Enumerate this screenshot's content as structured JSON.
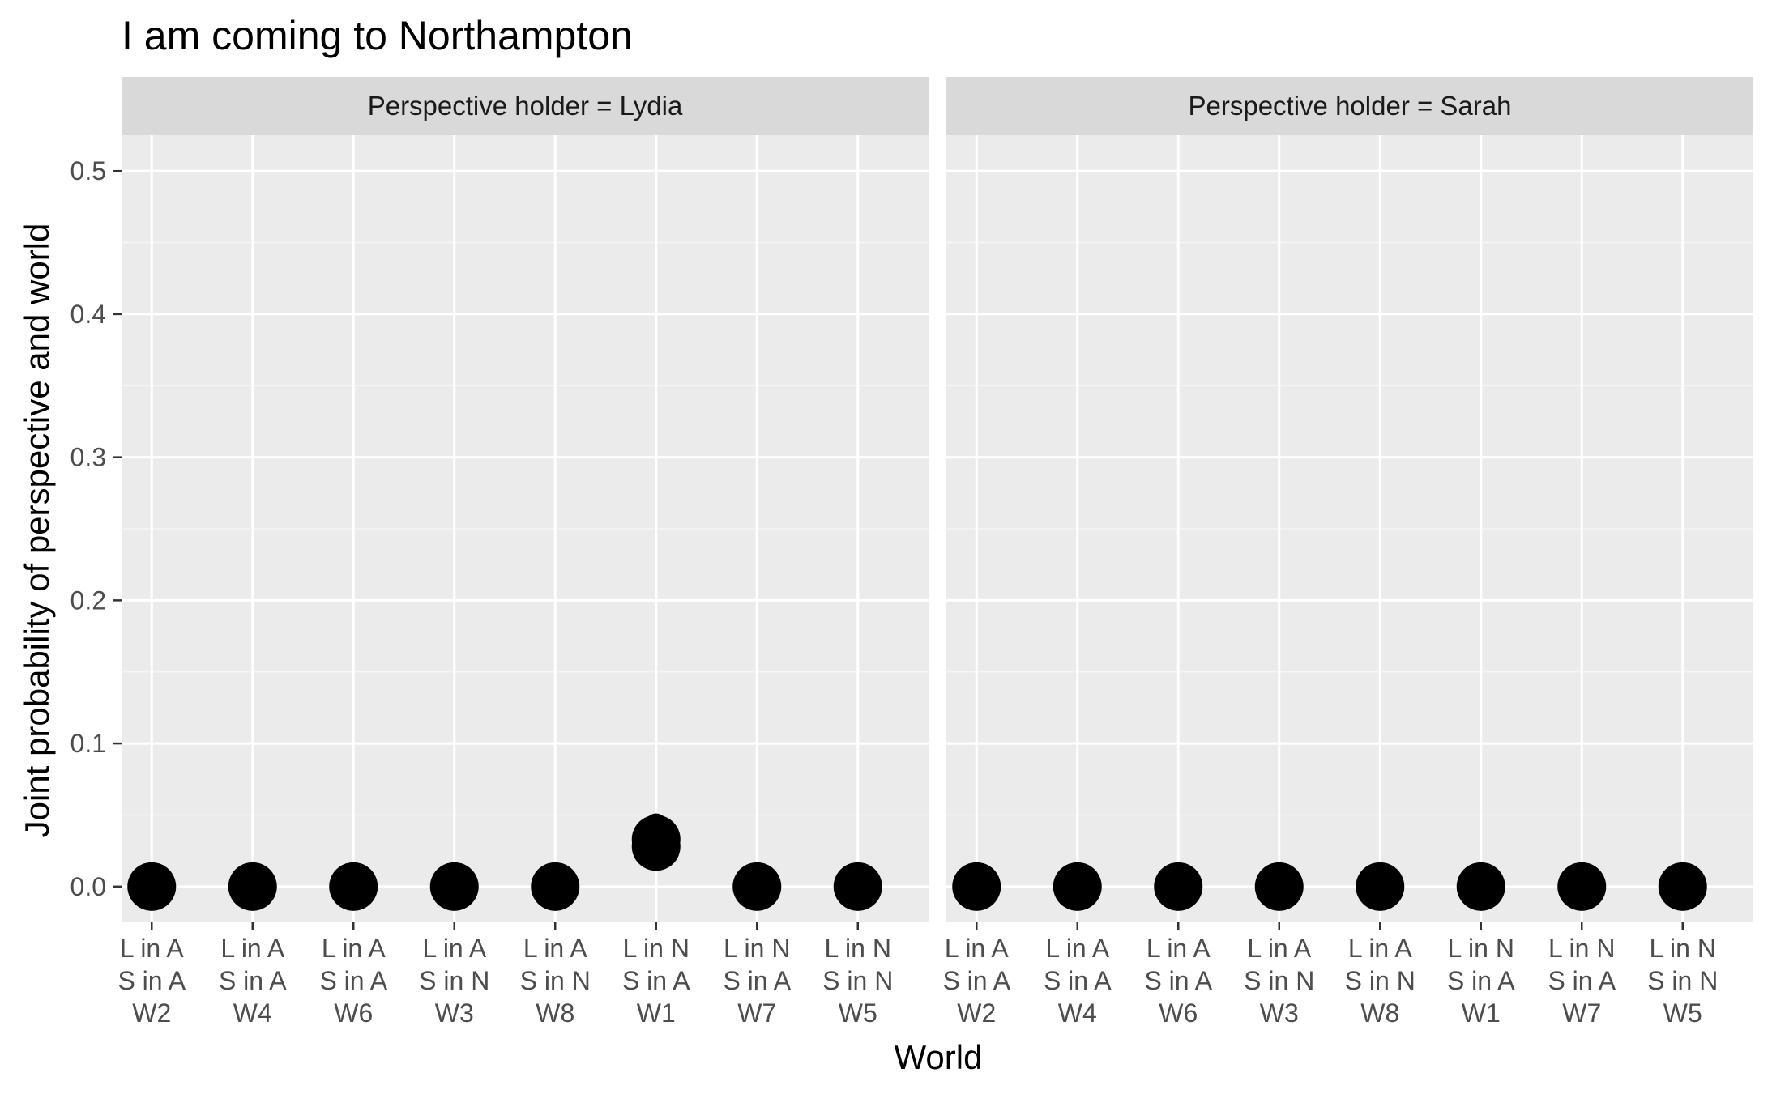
{
  "chart_data": {
    "type": "scatter",
    "title": "I am coming to Northampton",
    "xlabel": "World",
    "ylabel": "Joint probability of perspective and world",
    "ylim": [
      -0.025,
      0.525
    ],
    "yticks": [
      "0.0",
      "0.1",
      "0.2",
      "0.3",
      "0.4",
      "0.5"
    ],
    "ytick_values": [
      0.0,
      0.1,
      0.2,
      0.3,
      0.4,
      0.5
    ],
    "categories": [
      [
        "L in A",
        "S in A",
        "W2"
      ],
      [
        "L in A",
        "S in A",
        "W4"
      ],
      [
        "L in A",
        "S in A",
        "W6"
      ],
      [
        "L in A",
        "S in N",
        "W3"
      ],
      [
        "L in A",
        "S in N",
        "W8"
      ],
      [
        "L in N",
        "S in A",
        "W1"
      ],
      [
        "L in N",
        "S in A",
        "W7"
      ],
      [
        "L in N",
        "S in N",
        "W5"
      ]
    ],
    "grid": true,
    "point_color": "#000000",
    "panels": [
      {
        "label": "Perspective holder = Lydia",
        "values": [
          0.0,
          0.0,
          0.0,
          0.0,
          0.0,
          0.028,
          0.0,
          0.0
        ],
        "extra_points": [
          {
            "category_index": 5,
            "value": 0.033
          }
        ]
      },
      {
        "label": "Perspective holder = Sarah",
        "values": [
          0.0,
          0.0,
          0.0,
          0.0,
          0.0,
          0.0,
          0.0,
          0.0
        ],
        "extra_points": []
      }
    ]
  }
}
